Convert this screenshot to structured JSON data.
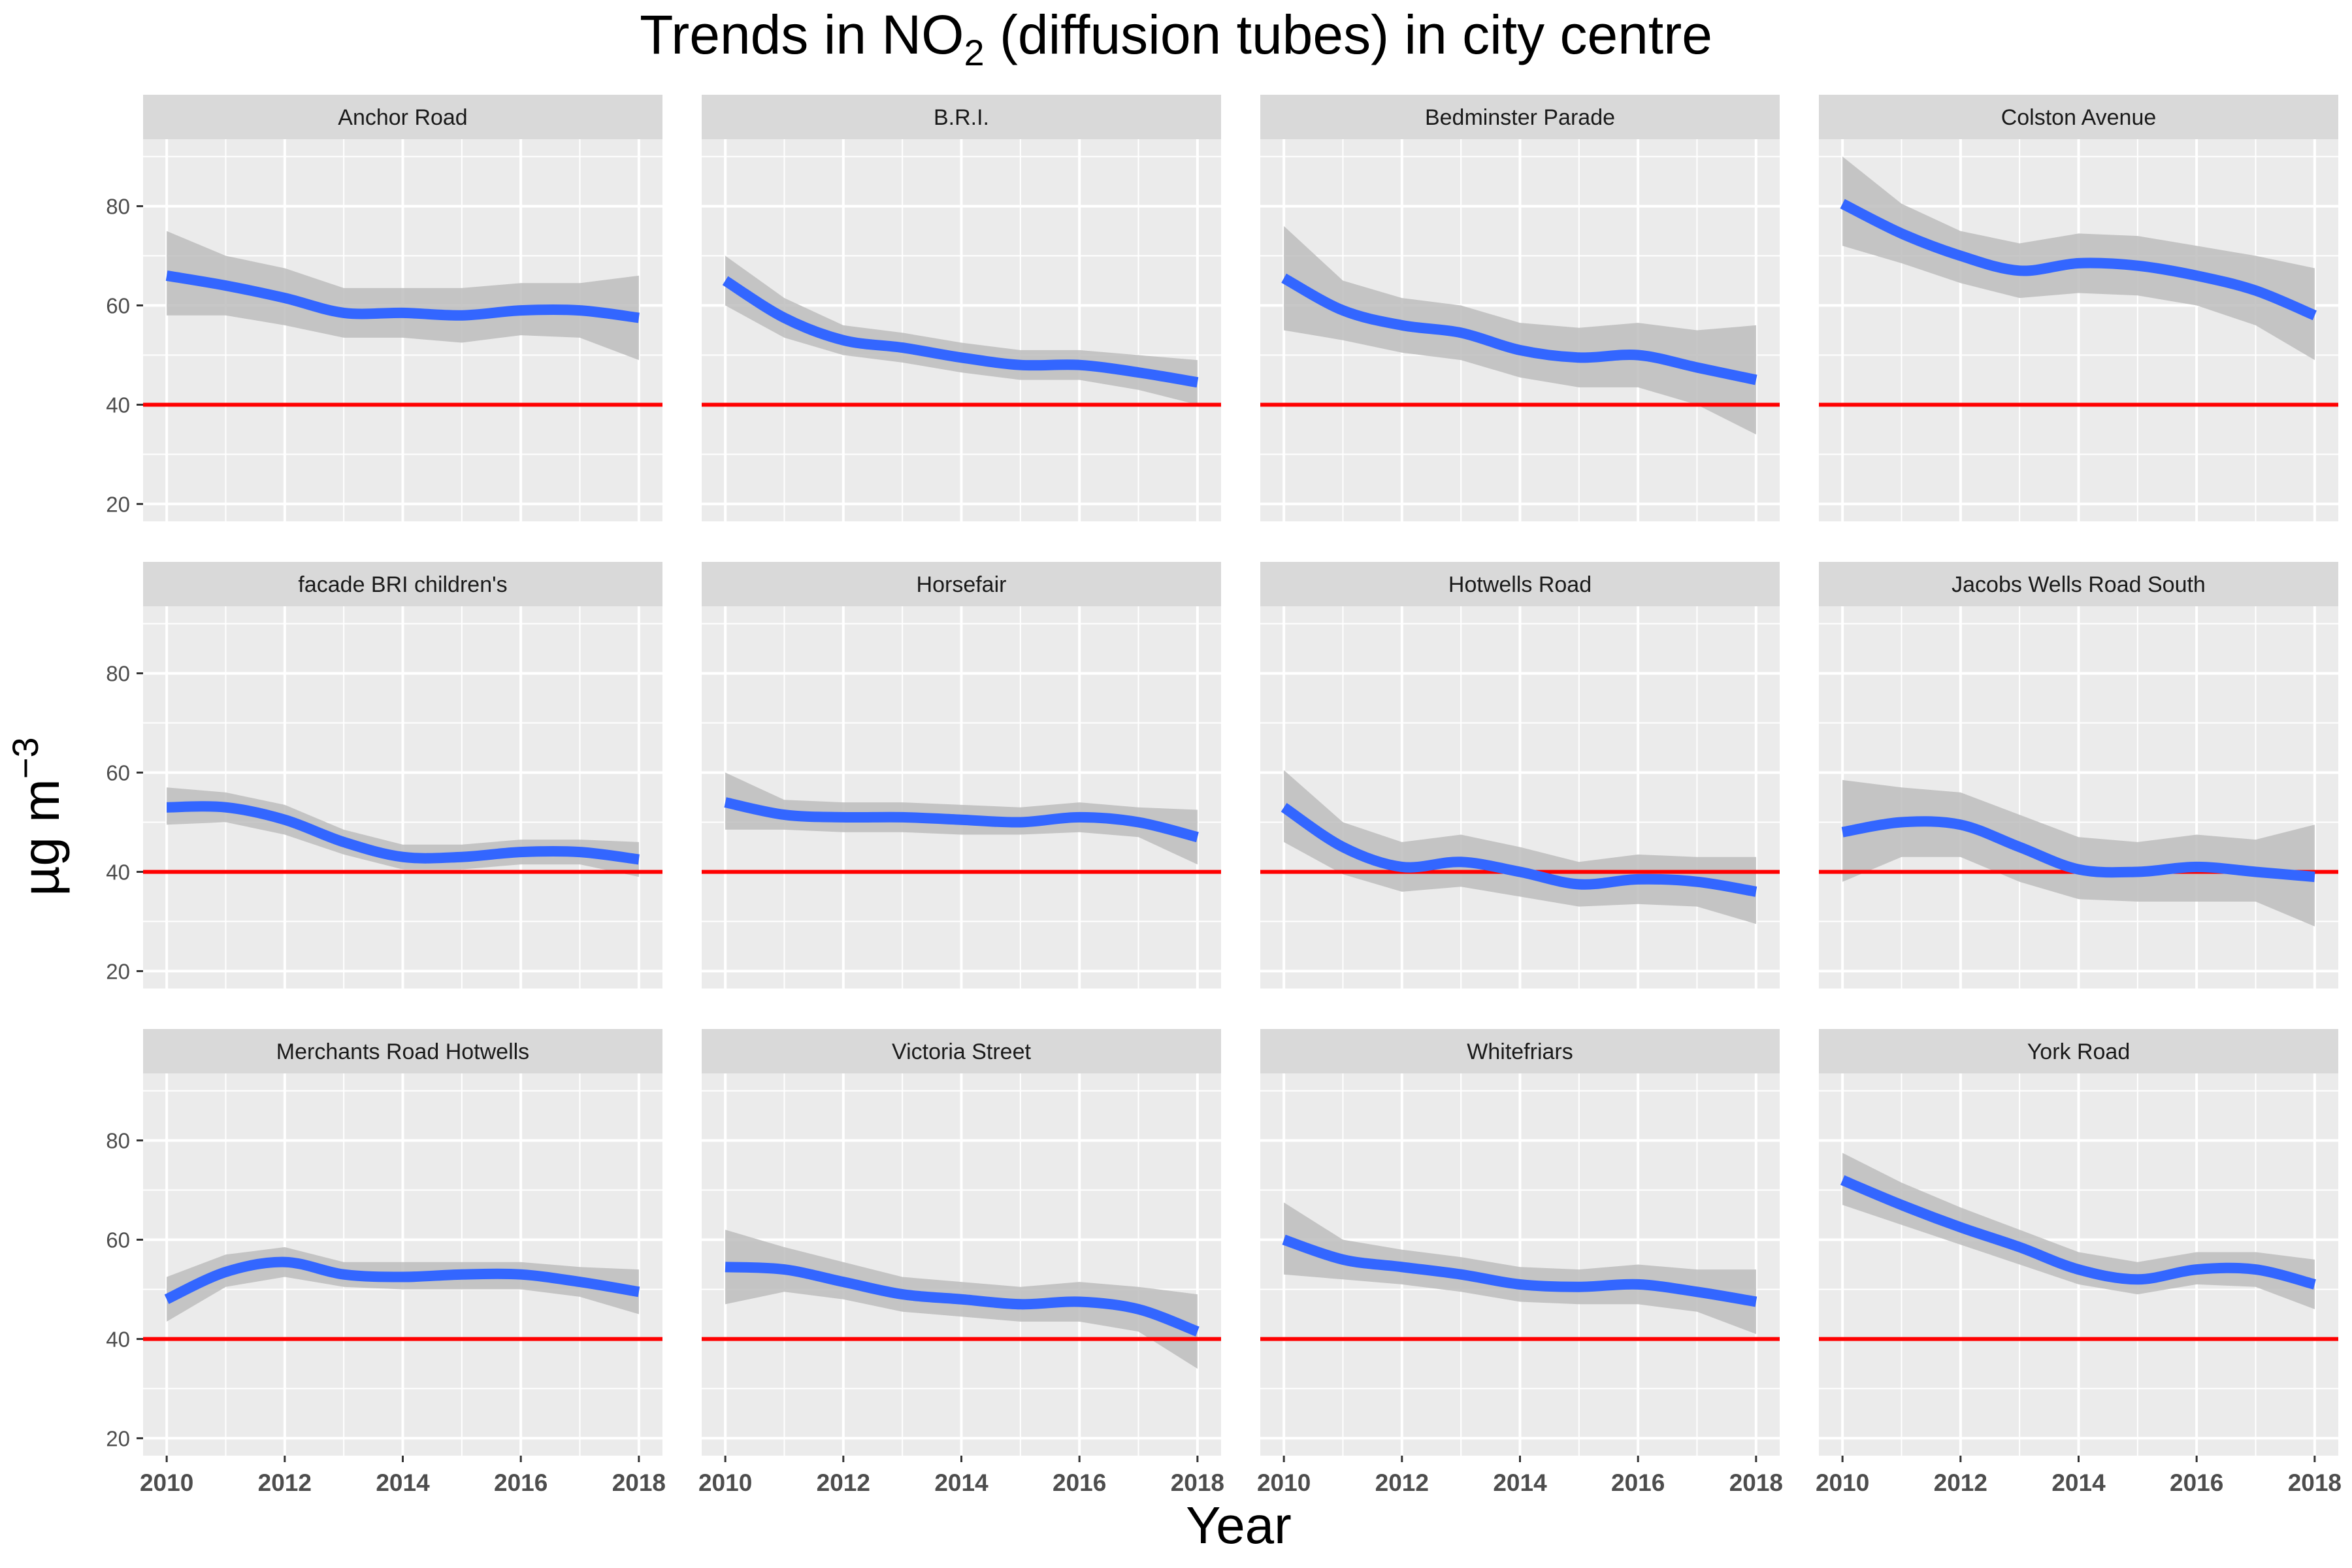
{
  "chart_data": {
    "type": "line",
    "title": {
      "prefix": "Trends in NO",
      "subscript": "2",
      "suffix": " (diffusion tubes) in city centre"
    },
    "xlabel": "Year",
    "ylabel": {
      "base": "µg m",
      "superscript": "−3"
    },
    "xlim": [
      2009.6,
      2018.4
    ],
    "ylim": [
      16.5,
      93.5
    ],
    "xticks": [
      2010,
      2012,
      2014,
      2016,
      2018
    ],
    "xtick_labels": [
      "2010",
      "2012",
      "2014",
      "2016",
      "2018"
    ],
    "yticks": [
      20,
      40,
      60,
      80
    ],
    "ytick_labels": [
      "20",
      "40",
      "60",
      "80"
    ],
    "reference_line": {
      "y": 40,
      "color": "#ff0000"
    },
    "x": [
      2010,
      2011,
      2012,
      2013,
      2014,
      2015,
      2016,
      2017,
      2018
    ],
    "colors": {
      "line": "#3366ff",
      "ribbon": "#bdbdbd",
      "panel_background": "#ebebeb",
      "strip_background": "#d9d9d9",
      "gridline": "#ffffff"
    },
    "panels": [
      {
        "name": "Anchor Road",
        "values": [
          66,
          64,
          61.5,
          58.5,
          58.5,
          58,
          59,
          59,
          57.5
        ],
        "lower": [
          58,
          58,
          56,
          53.5,
          53.5,
          52.5,
          54,
          53.5,
          49
        ],
        "upper": [
          75,
          70,
          67.5,
          63.5,
          63.5,
          63.5,
          64.5,
          64.5,
          66
        ]
      },
      {
        "name": "B.R.I.",
        "values": [
          65,
          57.5,
          53,
          51.5,
          49.5,
          48,
          48,
          46.5,
          44.5
        ],
        "lower": [
          60,
          53.5,
          50,
          48.5,
          46.5,
          45,
          45,
          43,
          40
        ],
        "upper": [
          70,
          61.5,
          56,
          54.5,
          52.5,
          51,
          51,
          50,
          49
        ]
      },
      {
        "name": "Bedminster Parade",
        "values": [
          65.5,
          59,
          56,
          54.5,
          51,
          49.5,
          50,
          47.5,
          45
        ],
        "lower": [
          55,
          53,
          50.5,
          49,
          45.5,
          43.5,
          43.5,
          40,
          34
        ],
        "upper": [
          76,
          65,
          61.5,
          60,
          56.5,
          55.5,
          56.5,
          55,
          56
        ]
      },
      {
        "name": "Colston Avenue",
        "values": [
          80.5,
          74.5,
          70,
          67,
          68.5,
          68,
          66,
          63,
          58
        ],
        "lower": [
          72,
          68.5,
          64.5,
          61.5,
          62.5,
          62,
          60,
          56,
          49
        ],
        "upper": [
          90,
          80.5,
          75,
          72.5,
          74.5,
          74,
          72,
          70,
          67.5
        ]
      },
      {
        "name": "facade BRI children's",
        "values": [
          53,
          53,
          50.5,
          46,
          43,
          43,
          44,
          44,
          42.5
        ],
        "lower": [
          49.5,
          50,
          47.5,
          43.5,
          40.5,
          40.5,
          41.5,
          41.5,
          39
        ],
        "upper": [
          57,
          56,
          53.5,
          48.5,
          45.5,
          45.5,
          46.5,
          46.5,
          46
        ]
      },
      {
        "name": "Horsefair",
        "values": [
          54,
          51.5,
          51,
          51,
          50.5,
          50,
          51,
          50,
          47
        ],
        "lower": [
          48.5,
          48.5,
          48,
          48,
          47.5,
          47.5,
          48,
          47,
          41.5
        ],
        "upper": [
          60,
          54.5,
          54,
          54,
          53.5,
          53,
          54,
          53,
          52.5
        ]
      },
      {
        "name": "Hotwells Road",
        "values": [
          53,
          45,
          41,
          42,
          40,
          37.5,
          38.5,
          38,
          36
        ],
        "lower": [
          46,
          39.5,
          36,
          37,
          35,
          33,
          33.5,
          33,
          29.5
        ],
        "upper": [
          60.5,
          50,
          46,
          47.5,
          45,
          42,
          43.5,
          43,
          43
        ]
      },
      {
        "name": "Jacobs Wells Road South",
        "values": [
          48,
          50,
          49.5,
          45,
          40.5,
          40,
          41,
          40,
          39
        ],
        "lower": [
          38,
          43,
          43,
          38,
          34.5,
          34,
          34,
          34,
          29
        ],
        "upper": [
          58.5,
          57,
          56,
          51.5,
          47,
          46,
          47.5,
          46.5,
          49.5
        ]
      },
      {
        "name": "Merchants Road Hotwells",
        "values": [
          48,
          53.5,
          55.5,
          53,
          52.5,
          53,
          53,
          51.5,
          49.5
        ],
        "lower": [
          43.5,
          50.5,
          52.5,
          50.5,
          50,
          50,
          50,
          48.5,
          45
        ],
        "upper": [
          52.5,
          57,
          58.5,
          55.5,
          55.5,
          55.5,
          55.5,
          54.5,
          54
        ]
      },
      {
        "name": "Victoria Street",
        "values": [
          54.5,
          54,
          51.5,
          49,
          48,
          47,
          47.5,
          46,
          41.5
        ],
        "lower": [
          47,
          49.5,
          48,
          45.5,
          44.5,
          43.5,
          43.5,
          41.5,
          34
        ],
        "upper": [
          62,
          58.5,
          55.5,
          52.5,
          51.5,
          50.5,
          51.5,
          50.5,
          49
        ]
      },
      {
        "name": "Whitefriars",
        "values": [
          60,
          56,
          54.5,
          53,
          51,
          50.5,
          51,
          49.5,
          47.5
        ],
        "lower": [
          53,
          52,
          51,
          49.5,
          47.5,
          47,
          47,
          45.5,
          41
        ],
        "upper": [
          67.5,
          60,
          58,
          56.5,
          54.5,
          54,
          55,
          54,
          54
        ]
      },
      {
        "name": "York Road",
        "values": [
          72,
          67,
          62.5,
          58.5,
          54,
          52,
          54,
          54,
          51
        ],
        "lower": [
          67,
          63,
          59,
          55,
          51,
          49,
          51,
          50.5,
          46
        ],
        "upper": [
          77.5,
          71.5,
          66.5,
          62,
          57.5,
          55.5,
          57.5,
          57.5,
          56
        ]
      }
    ]
  }
}
